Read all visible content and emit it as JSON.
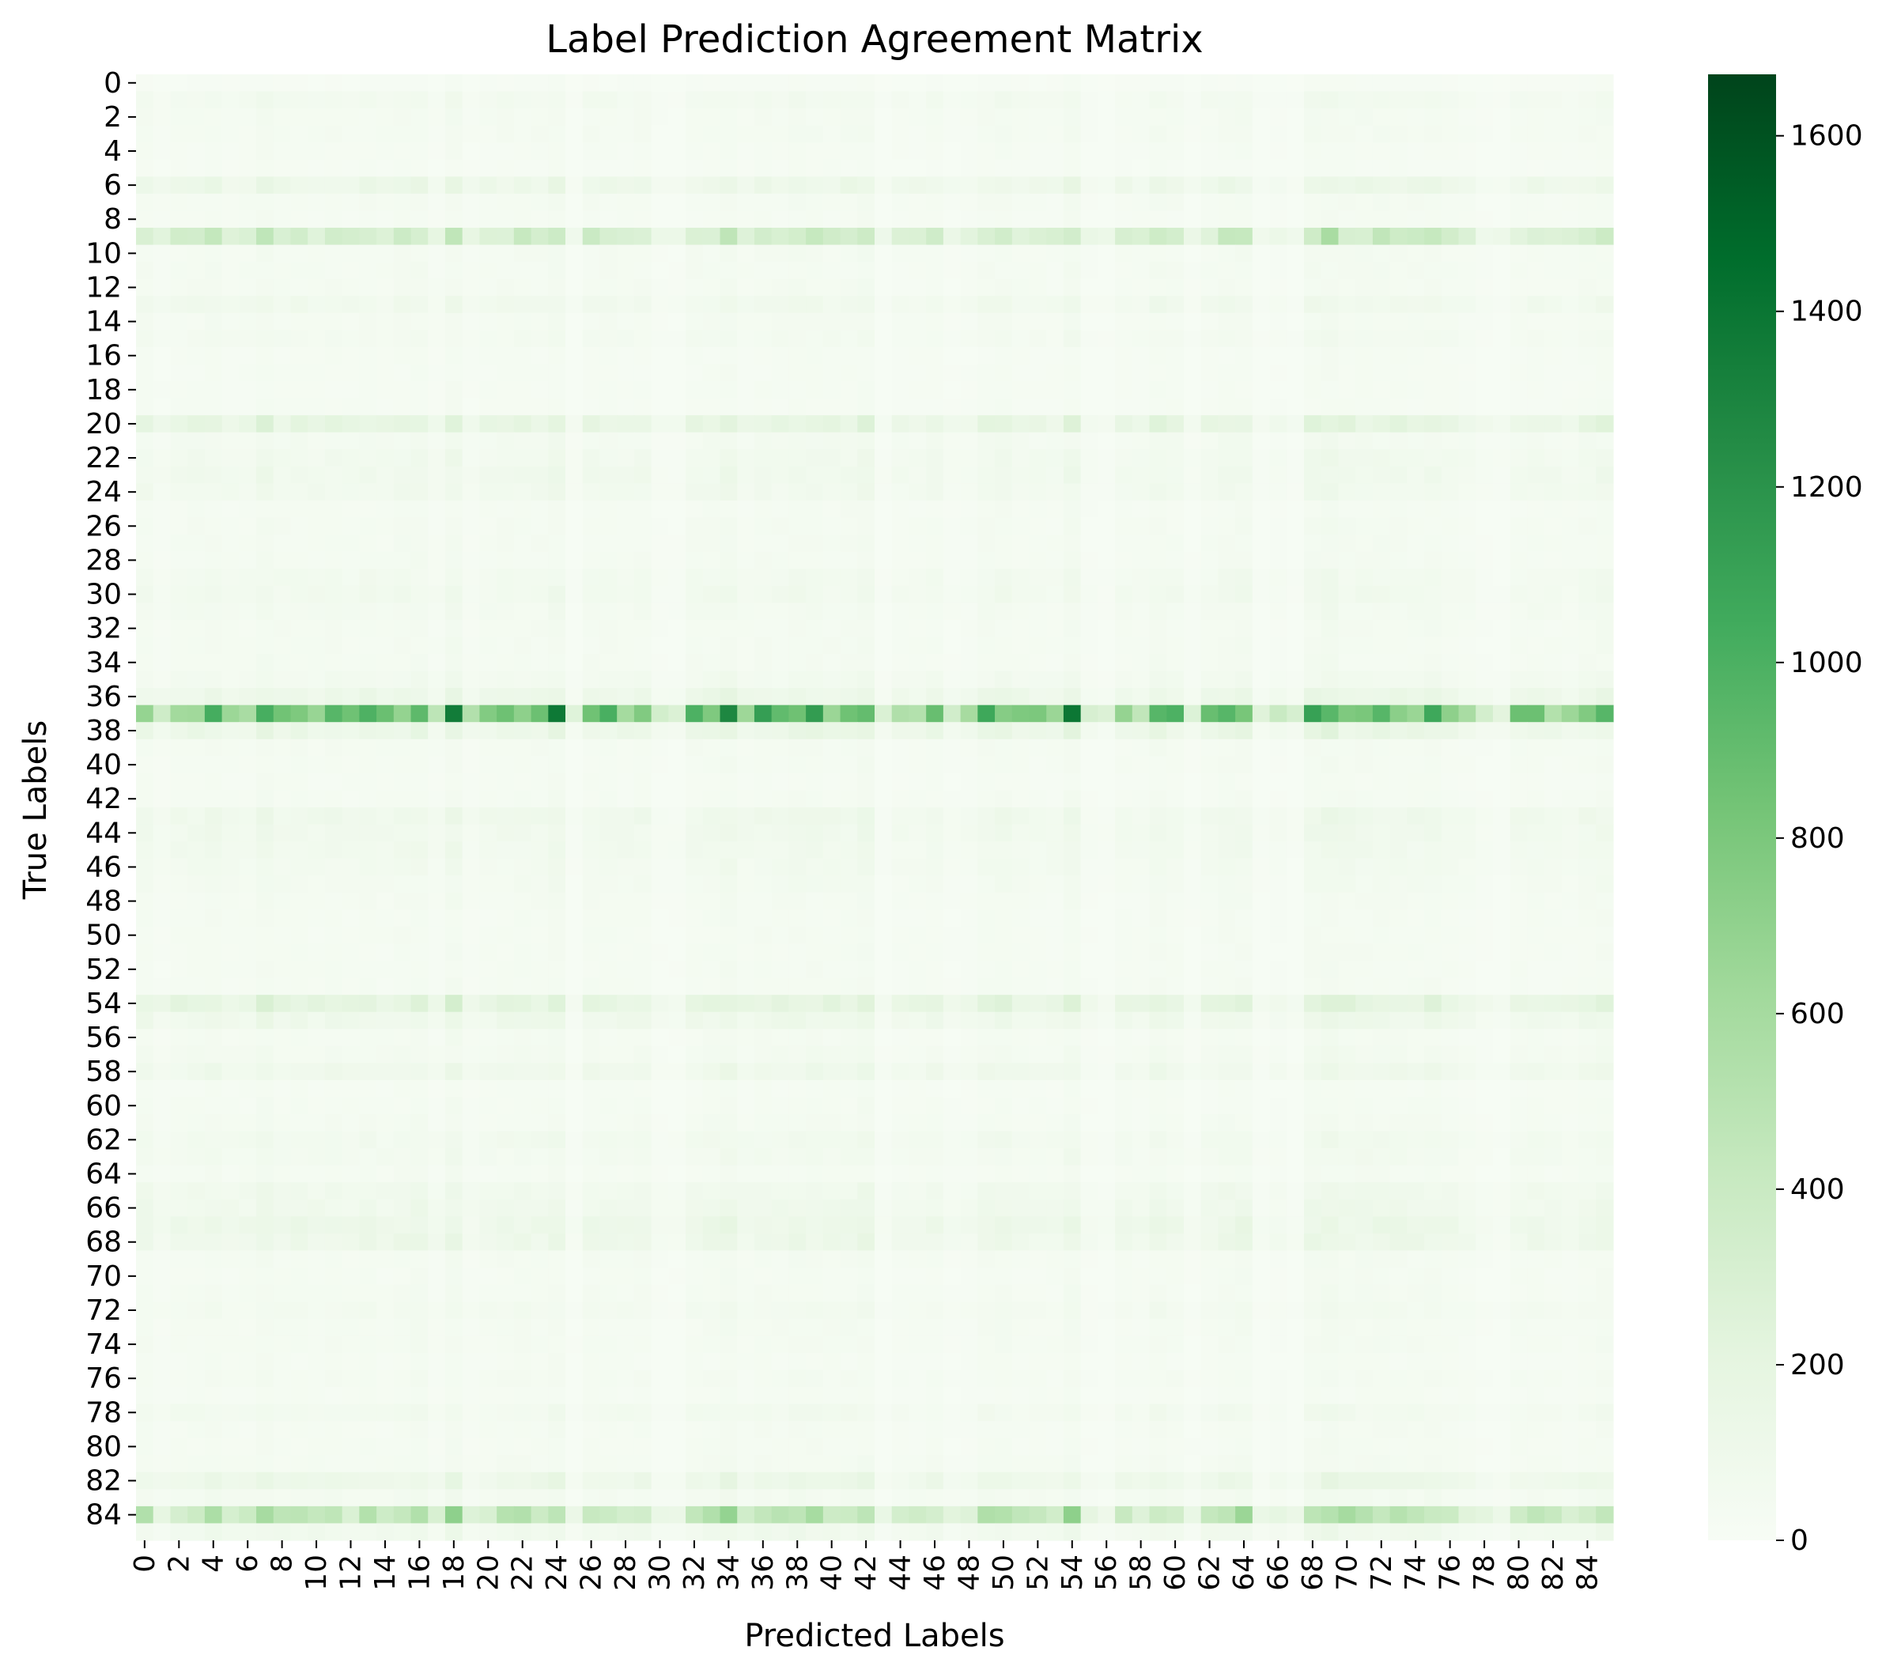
{
  "chart_data": {
    "type": "heatmap",
    "title": "Label Prediction Agreement Matrix",
    "xlabel": "Predicted Labels",
    "ylabel": "True Labels",
    "n_rows": 86,
    "n_cols": 86,
    "x_tick_labels": [
      "0",
      "2",
      "4",
      "6",
      "8",
      "10",
      "12",
      "14",
      "16",
      "18",
      "20",
      "22",
      "24",
      "26",
      "28",
      "30",
      "32",
      "34",
      "36",
      "38",
      "40",
      "42",
      "44",
      "46",
      "48",
      "50",
      "52",
      "54",
      "56",
      "58",
      "60",
      "62",
      "64",
      "66",
      "68",
      "70",
      "72",
      "74",
      "76",
      "78",
      "80",
      "82",
      "84"
    ],
    "y_tick_labels": [
      "0",
      "2",
      "4",
      "6",
      "8",
      "10",
      "12",
      "14",
      "16",
      "18",
      "20",
      "22",
      "24",
      "26",
      "28",
      "30",
      "32",
      "34",
      "36",
      "38",
      "40",
      "42",
      "44",
      "46",
      "48",
      "50",
      "52",
      "54",
      "56",
      "58",
      "60",
      "62",
      "64",
      "66",
      "68",
      "70",
      "72",
      "74",
      "76",
      "78",
      "80",
      "82",
      "84"
    ],
    "colorbar": {
      "colormap": "Greens",
      "min": 0,
      "max": 1670,
      "ticks": [
        "0",
        "200",
        "400",
        "600",
        "800",
        "1000",
        "1200",
        "1400",
        "1600"
      ]
    },
    "column_weights": [
      1.0,
      0.55,
      0.9,
      0.95,
      1.1,
      0.8,
      0.85,
      1.3,
      0.95,
      1.0,
      0.9,
      1.0,
      0.85,
      1.0,
      0.85,
      1.05,
      1.15,
      0.6,
      1.35,
      0.55,
      0.85,
      0.95,
      1.0,
      0.95,
      1.3,
      0.3,
      1.0,
      0.95,
      0.9,
      1.0,
      0.4,
      0.35,
      0.95,
      1.05,
      1.3,
      0.8,
      1.05,
      0.95,
      1.15,
      1.1,
      0.95,
      1.05,
      1.3,
      0.3,
      0.7,
      0.75,
      0.95,
      0.45,
      0.6,
      1.0,
      1.1,
      0.85,
      0.8,
      0.75,
      1.3,
      0.4,
      0.3,
      0.8,
      0.7,
      1.15,
      0.95,
      0.4,
      0.85,
      1.1,
      1.2,
      0.3,
      0.5,
      0.3,
      1.2,
      1.4,
      1.1,
      1.1,
      1.1,
      1.05,
      1.0,
      1.1,
      0.85,
      0.7,
      0.4,
      0.3,
      0.85,
      0.9,
      0.8,
      0.7,
      0.95,
      1.15
    ],
    "row_levels": [
      20,
      60,
      40,
      40,
      30,
      25,
      120,
      40,
      30,
      340,
      40,
      40,
      40,
      80,
      40,
      50,
      30,
      30,
      30,
      30,
      180,
      50,
      70,
      80,
      70,
      35,
      40,
      40,
      40,
      60,
      70,
      50,
      40,
      40,
      40,
      60,
      120,
      860,
      140,
      40,
      35,
      30,
      35,
      90,
      80,
      70,
      60,
      50,
      40,
      35,
      35,
      35,
      35,
      35,
      200,
      100,
      40,
      50,
      90,
      30,
      35,
      40,
      65,
      55,
      35,
      80,
      90,
      120,
      110,
      40,
      35,
      40,
      55,
      40,
      40,
      30,
      40,
      30,
      60,
      35,
      35,
      40,
      120,
      50,
      440,
      80
    ]
  }
}
